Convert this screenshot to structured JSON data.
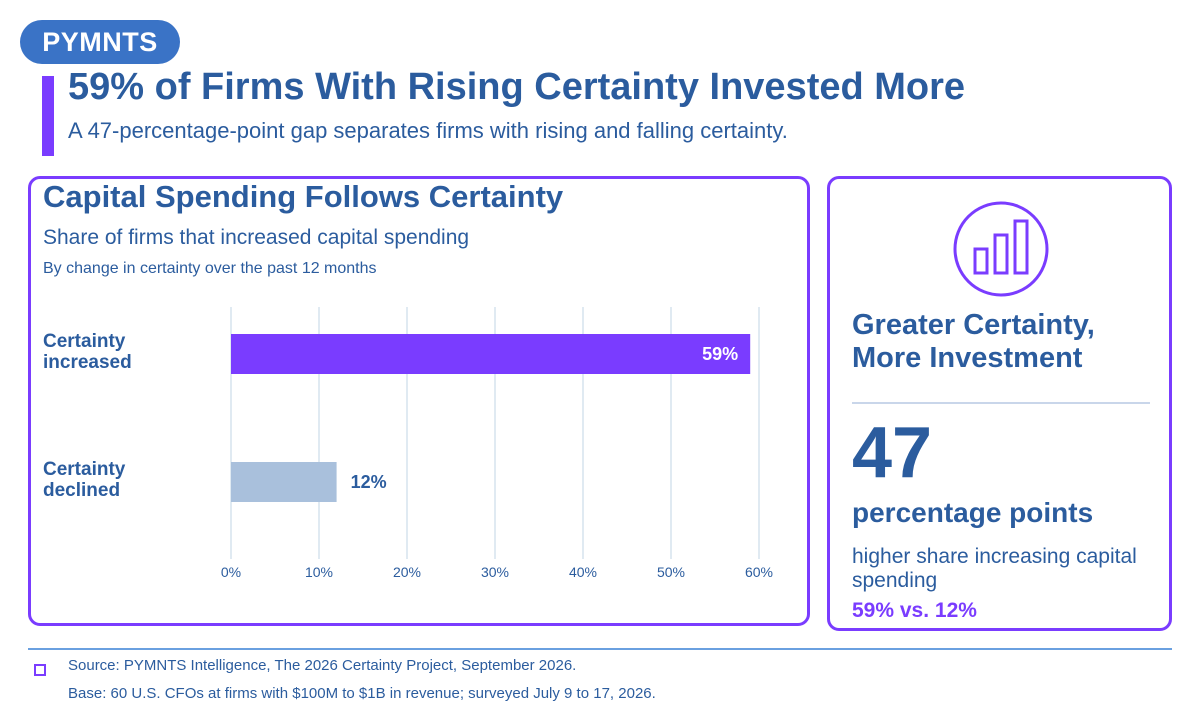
{
  "brand": "PYMNTS",
  "headline": "59% of Firms With Rising Certainty Invested More",
  "subheadline": "A 47-percentage-point gap separates firms with rising and falling certainty.",
  "colors": {
    "accent": "#7a3cff",
    "primary_text": "#2b5c9e",
    "bar_increased": "#7a3cff",
    "bar_declined": "#a9c0dc",
    "grid": "#d6e3ee",
    "badge": "#3a73c6"
  },
  "chart_data": {
    "type": "bar",
    "orientation": "horizontal",
    "title": "Capital Spending Follows Certainty",
    "subtitle": "Share of firms that increased capital spending",
    "caption": "By change in certainty over the past 12 months",
    "categories": [
      "Certainty increased",
      "Certainty declined"
    ],
    "category_lines": [
      [
        "Certainty",
        "increased"
      ],
      [
        "Certainty",
        "declined"
      ]
    ],
    "values": [
      59,
      12
    ],
    "value_labels": [
      "59%",
      "12%"
    ],
    "xlim": [
      0,
      60
    ],
    "xticks": [
      0,
      10,
      20,
      30,
      40,
      50,
      60
    ],
    "xtick_labels": [
      "0%",
      "10%",
      "20%",
      "30%",
      "40%",
      "50%",
      "60%"
    ],
    "grid": true,
    "legend": "none"
  },
  "callout": {
    "icon": "bar-chart-icon",
    "heading_lines": [
      "Greater Certainty,",
      "More Investment"
    ],
    "number": "47",
    "unit": "percentage points",
    "description": "higher share increasing capital spending",
    "comparison": "59% vs. 12%"
  },
  "footer": {
    "source": "Source: PYMNTS Intelligence, The 2026 Certainty Project, September 2026.",
    "base": "Base: 60 U.S. CFOs at firms with $100M to $1B in revenue; surveyed July 9 to 17, 2026."
  }
}
